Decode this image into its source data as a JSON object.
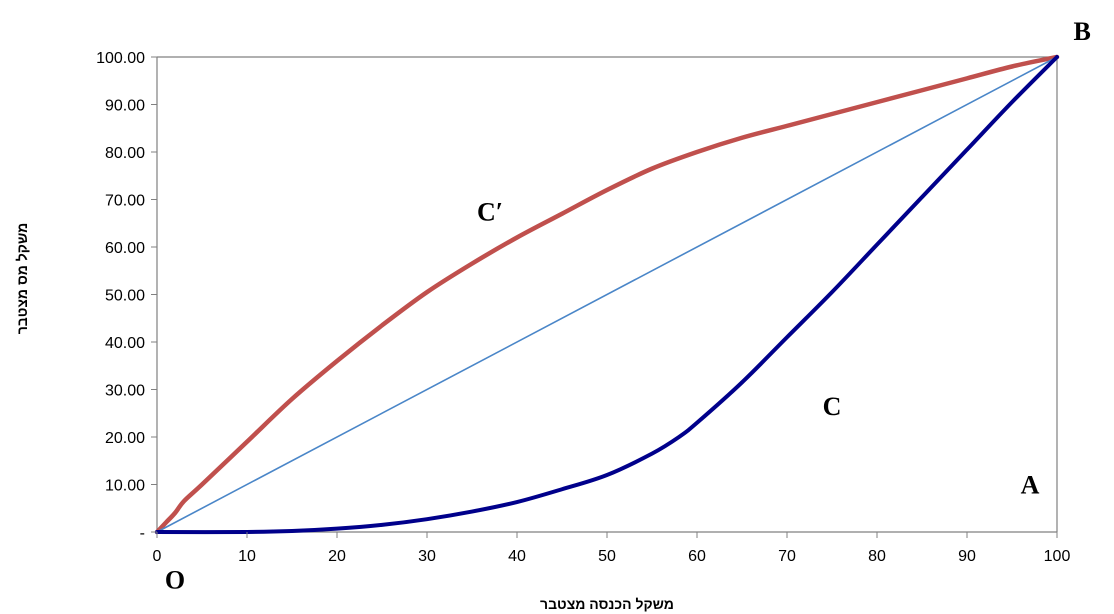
{
  "chart_data": {
    "type": "line",
    "xlabel": "משקל הכנסה מצטבר",
    "ylabel": "משקל מס  מצטבר",
    "xlim": [
      0,
      100
    ],
    "ylim": [
      0,
      100
    ],
    "x_ticks": [
      "0",
      "10",
      "20",
      "30",
      "40",
      "50",
      "60",
      "70",
      "80",
      "90",
      "100"
    ],
    "y_ticks": [
      "-",
      "10.00",
      "20.00",
      "30.00",
      "40.00",
      "50.00",
      "60.00",
      "70.00",
      "80.00",
      "90.00",
      "100.00"
    ],
    "grid": false,
    "series": [
      {
        "color": "#c0504d",
        "x": [
          0,
          1,
          2,
          3,
          5,
          10,
          15,
          20,
          25,
          30,
          35,
          40,
          45,
          50,
          55,
          60,
          65,
          70,
          75,
          80,
          85,
          90,
          95,
          100
        ],
        "y": [
          0,
          2,
          4,
          6.5,
          10,
          19,
          28,
          36,
          43.5,
          50.5,
          56.5,
          62,
          67,
          72,
          76.5,
          80,
          83,
          85.5,
          88,
          90.5,
          93,
          95.5,
          98,
          100
        ]
      },
      {
        "color": "#4a86c8",
        "x": [
          0,
          100
        ],
        "y": [
          0,
          100
        ]
      },
      {
        "color": "#00008b",
        "x": [
          0,
          10,
          15,
          20,
          25,
          30,
          35,
          40,
          45,
          50,
          55,
          58,
          60,
          65,
          70,
          75,
          80,
          85,
          90,
          95,
          100
        ],
        "y": [
          0,
          0,
          0.2,
          0.7,
          1.5,
          2.7,
          4.3,
          6.3,
          9,
          12,
          16.5,
          20,
          23,
          31.5,
          41,
          50.5,
          60.5,
          70.5,
          80.5,
          90.5,
          100
        ]
      }
    ],
    "annotations": [
      {
        "text": "B",
        "x": 102.8,
        "y": 105.5
      },
      {
        "text": "C′",
        "x": 37,
        "y": 67.5
      },
      {
        "text": "C",
        "x": 75,
        "y": 26.5
      },
      {
        "text": "A",
        "x": 97,
        "y": 10
      },
      {
        "text": "O",
        "x": 2,
        "y": -10
      }
    ]
  }
}
